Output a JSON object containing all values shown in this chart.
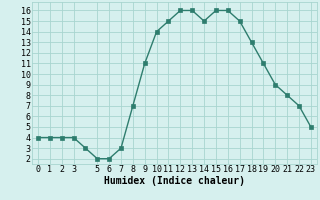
{
  "x": [
    0,
    1,
    2,
    3,
    4,
    5,
    6,
    7,
    8,
    9,
    10,
    11,
    12,
    13,
    14,
    15,
    16,
    17,
    18,
    19,
    20,
    21,
    22,
    23
  ],
  "y": [
    4,
    4,
    4,
    4,
    3,
    2,
    2,
    3,
    7,
    11,
    14,
    15,
    16,
    16,
    15,
    16,
    16,
    15,
    13,
    11,
    9,
    8,
    7,
    5
  ],
  "line_color": "#2e7d6e",
  "marker": "s",
  "marker_size": 2.2,
  "bg_color": "#d6f0ee",
  "grid_color": "#a8d5d0",
  "xlabel": "Humidex (Indice chaleur)",
  "xlabel_fontsize": 7,
  "tick_fontsize": 6,
  "xlim": [
    -0.5,
    23.5
  ],
  "ylim": [
    1.5,
    16.8
  ],
  "yticks": [
    2,
    3,
    4,
    5,
    6,
    7,
    8,
    9,
    10,
    11,
    12,
    13,
    14,
    15,
    16
  ],
  "xticks": [
    0,
    1,
    2,
    3,
    5,
    6,
    7,
    8,
    9,
    10,
    11,
    12,
    13,
    14,
    15,
    16,
    17,
    18,
    19,
    20,
    21,
    22,
    23
  ],
  "line_width": 1.0
}
